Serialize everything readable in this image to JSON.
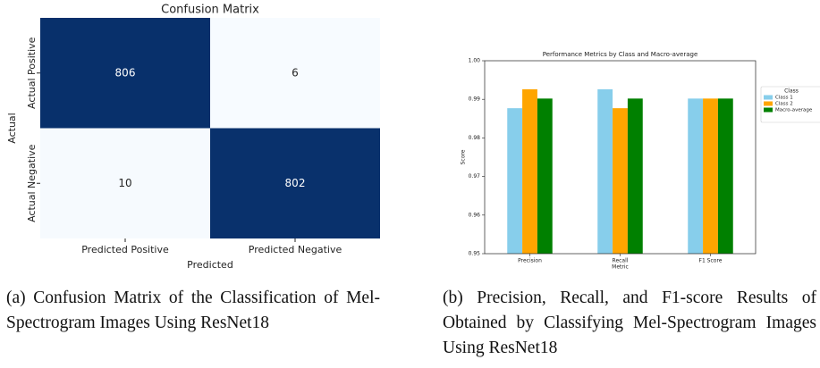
{
  "chart_data": [
    {
      "type": "heatmap",
      "title": "Confusion Matrix",
      "x_label": "Predicted",
      "y_label": "Actual",
      "x_categories": [
        "Predicted Positive",
        "Predicted Negative"
      ],
      "y_categories": [
        "Actual Positive",
        "Actual Negative"
      ],
      "values": [
        [
          806,
          6
        ],
        [
          10,
          802
        ]
      ],
      "color_low": "#f7fbff",
      "color_high": "#08306b",
      "text_light": "#ffffff",
      "text_dark": "#262626"
    },
    {
      "type": "bar",
      "title": "Performance Metrics by Class and Macro-average",
      "x_label": "Metric",
      "y_label": "Score",
      "categories": [
        "Precision",
        "Recall",
        "F1 Score"
      ],
      "series": [
        {
          "name": "Class 1",
          "color": "#87ceeb",
          "values": [
            0.9877,
            0.9926,
            0.9902
          ]
        },
        {
          "name": "Class 2",
          "color": "#ffa500",
          "values": [
            0.9926,
            0.9877,
            0.9902
          ]
        },
        {
          "name": "Macro-average",
          "color": "#008000",
          "values": [
            0.9902,
            0.9902,
            0.9902
          ]
        }
      ],
      "ylim": [
        0.95,
        1.0
      ],
      "yticks": [
        0.95,
        0.96,
        0.97,
        0.98,
        0.99,
        {
          "value": 1.0,
          "label": "1.00"
        }
      ],
      "legend_title": "Class",
      "legend": "outside-right"
    }
  ],
  "captions": [
    "(a) Confusion Matrix of the Classification of Mel-Spectrogram Images Using ResNet18",
    "(b) Precision, Recall, and F1-score Results of Obtained by Classifying Mel-Spectrogram Images Using ResNet18"
  ]
}
